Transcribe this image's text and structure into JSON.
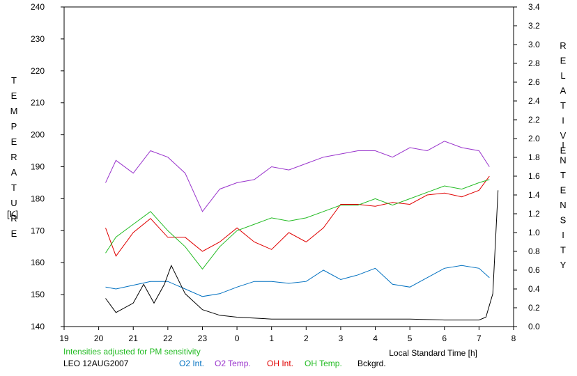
{
  "chart_data": {
    "type": "line",
    "left_axis_title": "TEMPERATURE",
    "left_axis_unit": "[K]",
    "right_axis_title_1": "RELATIVE",
    "right_axis_title_2": "INTENSITY",
    "xlabel": "Local Standard Time [h]",
    "note": "Intensities adjusted for PM sensitivity",
    "station": "LEO 12AUG2007",
    "xlim": [
      19,
      8
    ],
    "x_ticks": [
      "19",
      "20",
      "21",
      "22",
      "23",
      "0",
      "1",
      "2",
      "3",
      "4",
      "5",
      "6",
      "7",
      "8"
    ],
    "ylim_left": [
      140,
      240
    ],
    "y_ticks_left": [
      "140",
      "150",
      "160",
      "170",
      "180",
      "190",
      "200",
      "210",
      "220",
      "230",
      "240"
    ],
    "ylim_right": [
      0.0,
      3.4
    ],
    "y_ticks_right": [
      "0.0",
      "0.2",
      "0.4",
      "0.6",
      "0.8",
      "1.0",
      "1.2",
      "1.4",
      "1.6",
      "1.8",
      "2.0",
      "2.2",
      "2.4",
      "2.6",
      "2.8",
      "3.0",
      "3.2",
      "3.4"
    ],
    "grid": false,
    "legend_position": "bottom",
    "series": [
      {
        "name": "O2 Int.",
        "axis": "right",
        "color": "#0070c0",
        "x": [
          20.2,
          20.5,
          21.0,
          21.5,
          22.0,
          22.5,
          23.0,
          23.5,
          0.0,
          0.5,
          1.0,
          1.5,
          2.0,
          2.5,
          3.0,
          3.5,
          4.0,
          4.5,
          5.0,
          5.5,
          6.0,
          6.5,
          7.0,
          7.3
        ],
        "y": [
          0.42,
          0.4,
          0.44,
          0.48,
          0.48,
          0.4,
          0.32,
          0.35,
          0.42,
          0.48,
          0.48,
          0.46,
          0.48,
          0.6,
          0.5,
          0.55,
          0.62,
          0.45,
          0.42,
          0.52,
          0.62,
          0.65,
          0.62,
          0.52
        ]
      },
      {
        "name": "O2 Temp.",
        "axis": "left",
        "color": "#9933cc",
        "x": [
          20.2,
          20.5,
          21.0,
          21.5,
          22.0,
          22.5,
          23.0,
          23.5,
          0.0,
          0.5,
          1.0,
          1.5,
          2.0,
          2.5,
          3.0,
          3.5,
          4.0,
          4.5,
          5.0,
          5.5,
          6.0,
          6.5,
          7.0,
          7.3
        ],
        "y": [
          185,
          192,
          188,
          195,
          193,
          188,
          176,
          183,
          185,
          186,
          190,
          189,
          191,
          193,
          194,
          195,
          195,
          193,
          196,
          195,
          198,
          196,
          195,
          190
        ]
      },
      {
        "name": "OH Int.",
        "axis": "right",
        "color": "#e00000",
        "x": [
          20.2,
          20.5,
          21.0,
          21.5,
          22.0,
          22.5,
          23.0,
          23.5,
          0.0,
          0.5,
          1.0,
          1.5,
          2.0,
          2.5,
          3.0,
          3.5,
          4.0,
          4.5,
          5.0,
          5.5,
          6.0,
          6.5,
          7.0,
          7.3
        ],
        "y": [
          1.05,
          0.75,
          1.0,
          1.15,
          0.95,
          0.95,
          0.8,
          0.9,
          1.05,
          0.9,
          0.82,
          1.0,
          0.9,
          1.05,
          1.3,
          1.3,
          1.28,
          1.32,
          1.3,
          1.4,
          1.42,
          1.38,
          1.45,
          1.6
        ]
      },
      {
        "name": "OH Temp.",
        "axis": "left",
        "color": "#22bb22",
        "x": [
          20.2,
          20.5,
          21.0,
          21.5,
          22.0,
          22.5,
          23.0,
          23.5,
          0.0,
          0.5,
          1.0,
          1.5,
          2.0,
          2.5,
          3.0,
          3.5,
          4.0,
          4.5,
          5.0,
          5.5,
          6.0,
          6.5,
          7.0,
          7.3
        ],
        "y": [
          163,
          168,
          172,
          176,
          170,
          165,
          158,
          165,
          170,
          172,
          174,
          173,
          174,
          176,
          178,
          178,
          180,
          178,
          180,
          182,
          184,
          183,
          185,
          186
        ]
      },
      {
        "name": "Bckgrd.",
        "axis": "right",
        "color": "#000000",
        "x": [
          20.2,
          20.5,
          21.0,
          21.3,
          21.6,
          21.9,
          22.1,
          22.5,
          23.0,
          23.5,
          0.0,
          1.0,
          2.0,
          3.0,
          4.0,
          5.0,
          6.0,
          7.0,
          7.2,
          7.4,
          7.55
        ],
        "y": [
          0.3,
          0.15,
          0.25,
          0.45,
          0.25,
          0.45,
          0.65,
          0.35,
          0.18,
          0.12,
          0.1,
          0.08,
          0.08,
          0.08,
          0.08,
          0.08,
          0.07,
          0.07,
          0.1,
          0.35,
          1.45
        ]
      }
    ]
  }
}
